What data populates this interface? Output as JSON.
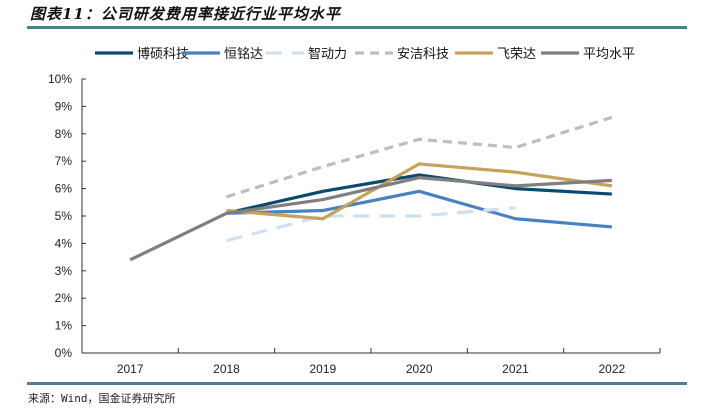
{
  "header": {
    "title": "图表11：公司研发费用率接近行业平均水平"
  },
  "footer": {
    "source": "来源：Wind，国金证券研究所"
  },
  "chart_data": {
    "type": "line",
    "title": "图表11：公司研发费用率接近行业平均水平",
    "xlabel": "",
    "ylabel": "",
    "categories": [
      "2017",
      "2018",
      "2019",
      "2020",
      "2021",
      "2022"
    ],
    "ylim": [
      0,
      10
    ],
    "yticks": [
      "0%",
      "1%",
      "2%",
      "3%",
      "4%",
      "5%",
      "6%",
      "7%",
      "8%",
      "9%",
      "10%"
    ],
    "grid": false,
    "legend_position": "top",
    "series": [
      {
        "name": "博硕科技",
        "color": "#0b4a6f",
        "dash": "solid",
        "values": [
          null,
          5.1,
          5.9,
          6.5,
          6.0,
          5.8
        ]
      },
      {
        "name": "恒铭达",
        "color": "#4a82c0",
        "dash": "solid",
        "values": [
          null,
          5.1,
          5.2,
          5.9,
          4.9,
          4.6
        ]
      },
      {
        "name": "智动力",
        "color": "#cfe0f1",
        "dash": "long-dash",
        "values": [
          null,
          4.1,
          5.0,
          5.0,
          5.3,
          null
        ]
      },
      {
        "name": "安洁科技",
        "color": "#bdbdbd",
        "dash": "dash",
        "values": [
          null,
          5.7,
          6.8,
          7.8,
          7.5,
          8.6
        ]
      },
      {
        "name": "飞荣达",
        "color": "#c6a25a",
        "dash": "solid",
        "values": [
          null,
          5.2,
          4.9,
          6.9,
          6.6,
          6.1
        ]
      },
      {
        "name": "平均水平",
        "color": "#7f7f7f",
        "dash": "solid",
        "values": [
          3.4,
          5.1,
          5.6,
          6.4,
          6.1,
          6.3
        ]
      }
    ]
  }
}
